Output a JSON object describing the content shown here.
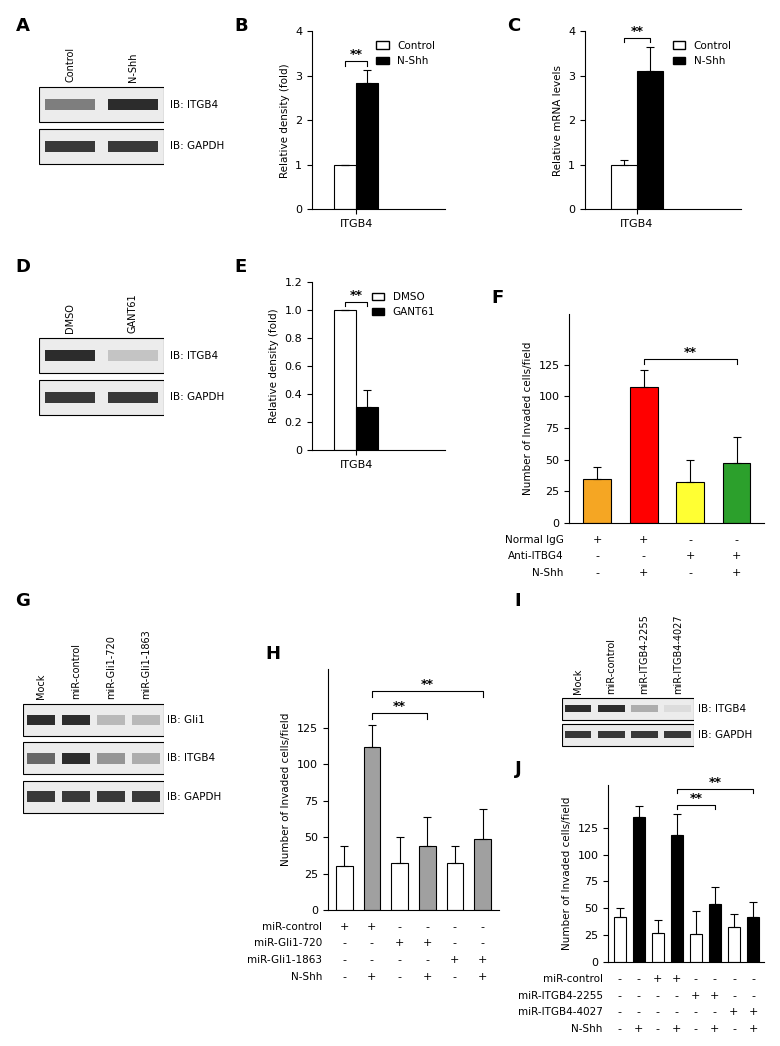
{
  "chart_data": [
    {
      "type": "bar",
      "panel": "B",
      "categories": [
        "ITGB4"
      ],
      "ylabel": "Relative density (fold)",
      "series": [
        {
          "name": "Control",
          "color": "#ffffff",
          "values": [
            1.0
          ],
          "error": [
            0
          ]
        },
        {
          "name": "N-Shh",
          "color": "#000000",
          "values": [
            2.83
          ],
          "error": [
            0.3
          ]
        }
      ],
      "ylim": [
        0,
        4
      ],
      "yticks": [
        0,
        1,
        2,
        3,
        4
      ],
      "legend": "upper right",
      "significance": [
        {
          "bars": [
            0,
            1
          ],
          "label": "**"
        }
      ]
    },
    {
      "type": "bar",
      "panel": "C",
      "categories": [
        "ITGB4"
      ],
      "ylabel": "Relative mRNA levels",
      "series": [
        {
          "name": "Control",
          "color": "#ffffff",
          "values": [
            1.0
          ],
          "error": [
            0.1
          ]
        },
        {
          "name": "N-Shh",
          "color": "#000000",
          "values": [
            3.1
          ],
          "error": [
            0.55
          ]
        }
      ],
      "ylim": [
        0,
        4
      ],
      "yticks": [
        0,
        1,
        2,
        3,
        4
      ],
      "legend": "upper right",
      "significance": [
        {
          "bars": [
            0,
            1
          ],
          "label": "**"
        }
      ]
    },
    {
      "type": "bar",
      "panel": "E",
      "categories": [
        "ITGB4"
      ],
      "ylabel": "Relative density (fold)",
      "series": [
        {
          "name": "DMSO",
          "color": "#ffffff",
          "values": [
            1.0
          ],
          "error": [
            0
          ]
        },
        {
          "name": "GANT61",
          "color": "#000000",
          "values": [
            0.31
          ],
          "error": [
            0.12
          ]
        }
      ],
      "ylim": [
        0,
        1.2
      ],
      "yticks": [
        0,
        0.2,
        0.4,
        0.6,
        0.8,
        1.0,
        1.2
      ],
      "legend": "upper right",
      "significance": [
        {
          "bars": [
            0,
            1
          ],
          "label": "**"
        }
      ]
    },
    {
      "type": "bar",
      "panel": "F",
      "categories": [
        null,
        null,
        null,
        null
      ],
      "tick_labels": "y",
      "ylabel": "Number of Invaded cells/field",
      "values": [
        35,
        107,
        32,
        47
      ],
      "error": [
        9,
        14,
        18,
        21
      ],
      "colors": [
        "#f5a623",
        "#ff0000",
        "#ffff33",
        "#2ca02c"
      ],
      "ylim": [
        0,
        165
      ],
      "yticks": [
        0,
        25,
        50,
        75,
        100,
        125
      ],
      "conditions": [
        {
          "label": "Normal IgG",
          "marks": [
            "+",
            "+",
            "-",
            "-"
          ]
        },
        {
          "label": "Anti-ITBG4",
          "marks": [
            "-",
            "-",
            "+",
            "+"
          ]
        },
        {
          "label": "N-Shh",
          "marks": [
            "-",
            "+",
            "-",
            "+"
          ]
        }
      ],
      "significance": [
        {
          "bars": [
            1,
            3
          ],
          "label": "**"
        }
      ]
    },
    {
      "type": "bar",
      "panel": "H",
      "categories": [
        null,
        null,
        null,
        null,
        null,
        null
      ],
      "tick_labels": "y",
      "ylabel": "Number of Invaded cells/field",
      "values": [
        30,
        112,
        32,
        44,
        32,
        49
      ],
      "error": [
        14,
        15,
        18,
        20,
        12,
        20
      ],
      "colors": [
        "#ffffff",
        "#a0a0a0",
        "#ffffff",
        "#a0a0a0",
        "#ffffff",
        "#a0a0a0"
      ],
      "ylim": [
        0,
        165
      ],
      "yticks": [
        0,
        25,
        50,
        75,
        100,
        125
      ],
      "conditions": [
        {
          "label": "miR-control",
          "marks": [
            "+",
            "+",
            "-",
            "-",
            "-",
            "-"
          ]
        },
        {
          "label": "miR-Gli1-720",
          "marks": [
            "-",
            "-",
            "+",
            "+",
            "-",
            "-"
          ]
        },
        {
          "label": "miR-Gli1-1863",
          "marks": [
            "-",
            "-",
            "-",
            "-",
            "+",
            "+"
          ]
        },
        {
          "label": "N-Shh",
          "marks": [
            "-",
            "+",
            "-",
            "+",
            "-",
            "+"
          ]
        }
      ],
      "significance": [
        {
          "bars": [
            1,
            3
          ],
          "label": "**"
        },
        {
          "bars": [
            1,
            5
          ],
          "label": "**"
        }
      ]
    },
    {
      "type": "bar",
      "panel": "J",
      "categories": [
        null,
        null,
        null,
        null,
        null,
        null,
        null,
        null
      ],
      "tick_labels": "y",
      "ylabel": "Number of Invaded cells/field",
      "values": [
        42,
        135,
        27,
        118,
        26,
        54,
        33,
        42
      ],
      "error": [
        8,
        10,
        12,
        20,
        22,
        16,
        12,
        14
      ],
      "colors": [
        "#ffffff",
        "#000000",
        "#ffffff",
        "#000000",
        "#ffffff",
        "#000000",
        "#ffffff",
        "#000000"
      ],
      "ylim": [
        0,
        165
      ],
      "yticks": [
        0,
        25,
        50,
        75,
        100,
        125
      ],
      "conditions": [
        {
          "label": "miR-control",
          "marks": [
            "-",
            "-",
            "+",
            "+",
            "-",
            "-",
            "-",
            "-"
          ]
        },
        {
          "label": "miR-ITGB4-2255",
          "marks": [
            "-",
            "-",
            "-",
            "-",
            "+",
            "+",
            "-",
            "-"
          ]
        },
        {
          "label": "miR-ITGB4-4027",
          "marks": [
            "-",
            "-",
            "-",
            "-",
            "-",
            "-",
            "+",
            "+"
          ]
        },
        {
          "label": "N-Shh",
          "marks": [
            "-",
            "+",
            "-",
            "+",
            "-",
            "+",
            "-",
            "+"
          ]
        }
      ],
      "significance": [
        {
          "bars": [
            3,
            5
          ],
          "label": "**"
        },
        {
          "bars": [
            3,
            7
          ],
          "label": "**"
        }
      ]
    }
  ],
  "blots": [
    {
      "panel": "A",
      "lanes": [
        "Control",
        "N-Shh"
      ],
      "rows": [
        {
          "label": "IB: ITGB4",
          "intensity": [
            0.55,
            0.9
          ]
        },
        {
          "label": "IB: GAPDH",
          "intensity": [
            0.85,
            0.85
          ]
        }
      ]
    },
    {
      "panel": "D",
      "lanes": [
        "DMSO",
        "GANT61"
      ],
      "rows": [
        {
          "label": "IB: ITGB4",
          "intensity": [
            0.9,
            0.25
          ]
        },
        {
          "label": "IB: GAPDH",
          "intensity": [
            0.85,
            0.85
          ]
        }
      ]
    },
    {
      "panel": "G",
      "lanes": [
        "Mock",
        "miR-control",
        "miR-Gli1-720",
        "miR-Gli1-1863"
      ],
      "rows": [
        {
          "label": "IB: Gli1",
          "intensity": [
            0.9,
            0.9,
            0.3,
            0.3
          ]
        },
        {
          "label": "IB: ITGB4",
          "intensity": [
            0.65,
            0.9,
            0.45,
            0.35
          ]
        },
        {
          "label": "IB: GAPDH",
          "intensity": [
            0.85,
            0.85,
            0.85,
            0.85
          ]
        }
      ]
    },
    {
      "panel": "I",
      "lanes": [
        "Mock",
        "miR-control",
        "miR-ITGB4-2255",
        "miR-ITGB4-4027"
      ],
      "rows": [
        {
          "label": "IB: ITGB4",
          "intensity": [
            0.9,
            0.9,
            0.35,
            0.15
          ]
        },
        {
          "label": "IB: GAPDH",
          "intensity": [
            0.85,
            0.85,
            0.85,
            0.85
          ]
        }
      ]
    }
  ]
}
